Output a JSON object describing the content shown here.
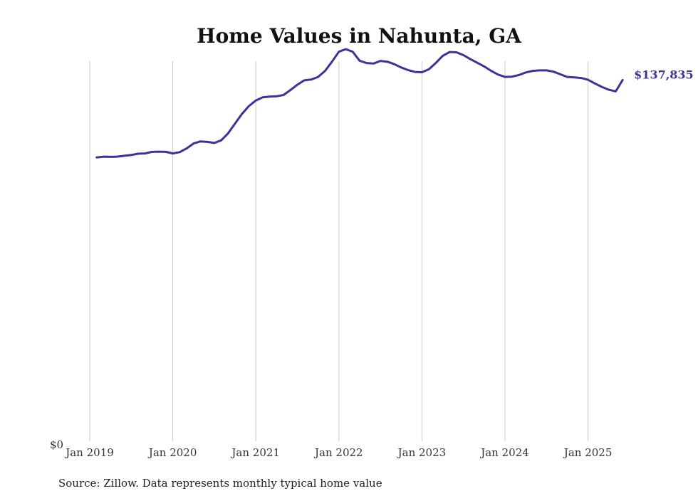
{
  "chart_data": {
    "type": "line",
    "title": "Home Values in Nahunta, GA",
    "source": "Source: Zillow. Data represents monthly typical home value",
    "end_label": "$137,835",
    "y_zero_label": "$0",
    "x_ticks": [
      "Jan 2019",
      "Jan 2020",
      "Jan 2021",
      "Jan 2022",
      "Jan 2023",
      "Jan 2024",
      "Jan 2025"
    ],
    "xlabel": "",
    "ylabel": "",
    "ylim": [
      0,
      145000
    ],
    "xlim": [
      "2019-01",
      "2025-07"
    ],
    "grid": "vertical lines at each year",
    "colors": {
      "line": "#3b3399",
      "grid": "#c8c8c8",
      "end_label": "#3b3399"
    },
    "series": [
      {
        "dates": [
          "2019-02",
          "2019-03",
          "2019-04",
          "2019-05",
          "2019-06",
          "2019-07",
          "2019-08",
          "2019-09",
          "2019-10",
          "2019-11",
          "2019-12",
          "2020-01",
          "2020-02",
          "2020-03",
          "2020-04",
          "2020-05",
          "2020-06",
          "2020-07",
          "2020-08",
          "2020-09",
          "2020-10",
          "2020-11",
          "2020-12",
          "2021-01",
          "2021-02",
          "2021-03",
          "2021-04",
          "2021-05",
          "2021-06",
          "2021-07",
          "2021-08",
          "2021-09",
          "2021-10",
          "2021-11",
          "2021-12",
          "2022-01",
          "2022-02",
          "2022-03",
          "2022-04",
          "2022-05",
          "2022-06",
          "2022-07",
          "2022-08",
          "2022-09",
          "2022-10",
          "2022-11",
          "2022-12",
          "2023-01",
          "2023-02",
          "2023-03",
          "2023-04",
          "2023-05",
          "2023-06",
          "2023-07",
          "2023-08",
          "2023-09",
          "2023-10",
          "2023-11",
          "2023-12",
          "2024-01",
          "2024-02",
          "2024-03",
          "2024-04",
          "2024-05",
          "2024-06",
          "2024-07",
          "2024-08",
          "2024-09",
          "2024-10",
          "2024-11",
          "2024-12",
          "2025-01",
          "2025-02",
          "2025-03",
          "2025-04",
          "2025-05",
          "2025-06"
        ],
        "values": [
          108300,
          108600,
          108500,
          108600,
          108900,
          109200,
          109700,
          109800,
          110400,
          110500,
          110400,
          109800,
          110300,
          111700,
          113600,
          114400,
          114200,
          113800,
          114800,
          117500,
          121200,
          124900,
          127900,
          130000,
          131200,
          131500,
          131600,
          132100,
          134000,
          136000,
          137700,
          138000,
          139000,
          141300,
          144800,
          148600,
          149600,
          148600,
          145200,
          144300,
          144100,
          145100,
          144800,
          143900,
          142600,
          141600,
          140900,
          140800,
          141900,
          144300,
          147000,
          148500,
          148400,
          147300,
          145800,
          144400,
          143000,
          141300,
          139900,
          139000,
          139100,
          139700,
          140700,
          141300,
          141500,
          141500,
          141000,
          140000,
          139000,
          138800,
          138600,
          137900,
          136500,
          135200,
          134100,
          133500,
          137835
        ]
      }
    ]
  }
}
